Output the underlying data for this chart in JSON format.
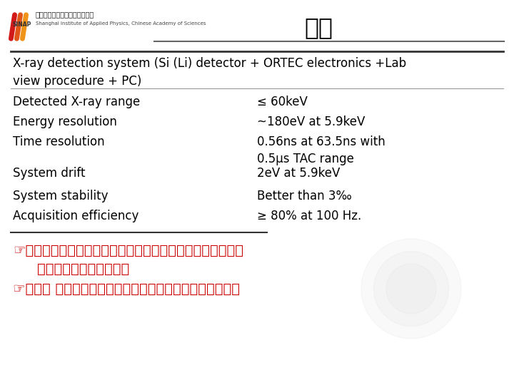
{
  "title": "小结",
  "bg_color": "#ffffff",
  "title_color": "#000000",
  "title_fontsize": 24,
  "header_line_color": "#666666",
  "table_header": "X-ray detection system (Si (Li) detector + ORTEC electronics +Lab\nview procedure + PC)",
  "rows": [
    [
      "Detected X-ray range",
      "≤ 60keV"
    ],
    [
      "Energy resolution",
      "~180eV at 5.9keV"
    ],
    [
      "Time resolution",
      "0.56ns at 63.5ns with\n0.5μs TAC range"
    ],
    [
      "System drift",
      "2eV at 5.9keV"
    ],
    [
      "System stability",
      "Better than 3‰"
    ],
    [
      "Acquisition efficiency",
      "≥ 80% at 100 Hz."
    ]
  ],
  "bullet1_line1": "☞探测器系统具有图形化显示，较好分辨率、良好稳定性、低",
  "bullet1_line2": "花费及性价比高的特点。",
  "bullet2": "☞此系统 已成功用于两期康普顿散射实验，至今仍在使用！",
  "bullet_color": "#cc0000",
  "bullet_fontsize": 14,
  "table_fontsize": 12,
  "header_fontsize": 12,
  "row_label_color": "#000000",
  "row_value_color": "#000000",
  "separator_line_color": "#333333",
  "thin_line_color": "#999999"
}
